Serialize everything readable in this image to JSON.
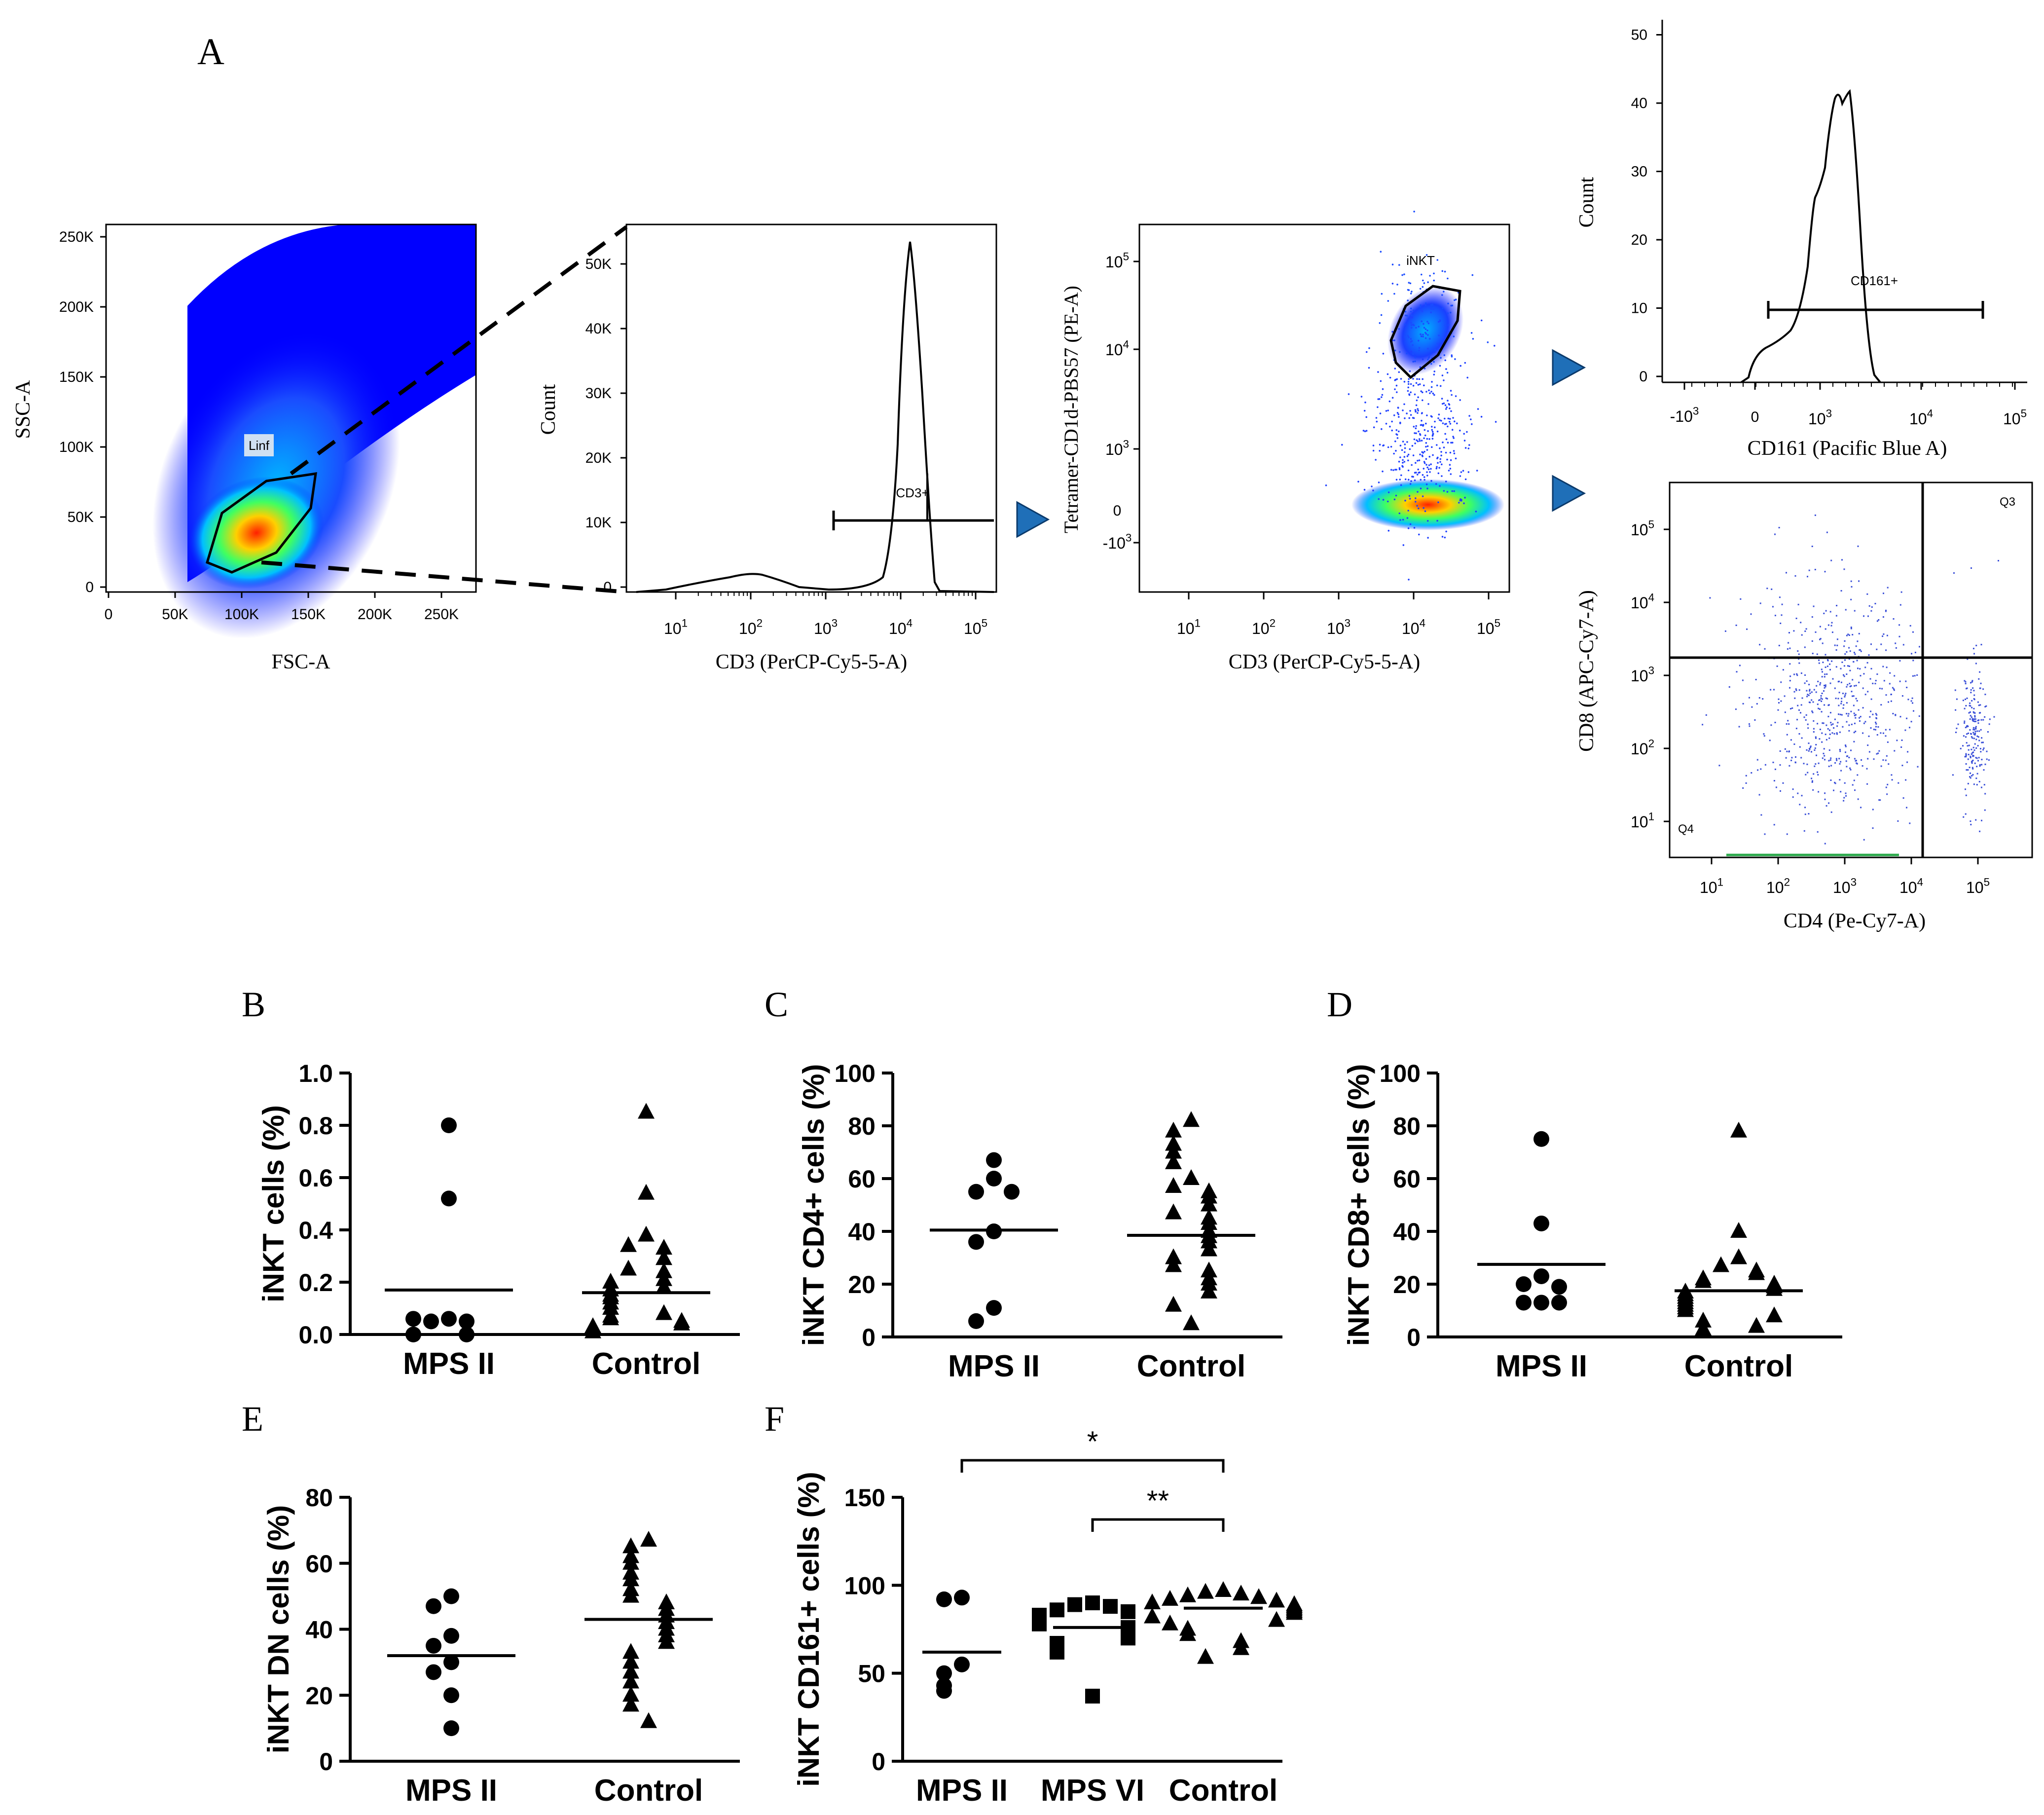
{
  "figure": {
    "panel_labels": {
      "A": "A",
      "B": "B",
      "C": "C",
      "D": "D",
      "E": "E",
      "F": "F"
    },
    "colors": {
      "ink": "#000000",
      "arrow": "#1f6fb8",
      "dens_low": "#0000ff",
      "dens_mid": "#00c8ff",
      "dens_hi": "#ffe600",
      "dens_peak": "#ff2000",
      "cd4cd8_dot": "#3a4fd8"
    }
  },
  "flow": {
    "p1": {
      "xlabel": "FSC-A",
      "ylabel": "SSC-A",
      "xticks": [
        "0",
        "50K",
        "100K",
        "150K",
        "200K",
        "250K"
      ],
      "yticks": [
        "0",
        "50K",
        "100K",
        "150K",
        "200K",
        "250K"
      ],
      "gate": "Linf"
    },
    "p2": {
      "xlabel": "CD3 (PerCP-Cy5-5-A)",
      "ylabel": "Count",
      "yticks": [
        "0",
        "10K",
        "20K",
        "30K",
        "40K",
        "50K"
      ],
      "xexp": [
        "1",
        "2",
        "3",
        "4",
        "5"
      ],
      "gate": "CD3+"
    },
    "p3": {
      "xlabel": "CD3 (PerCP-Cy5-5-A)",
      "ylabel": "Tetramer-CD1d-PBS57 (PE-A)",
      "xexp": [
        "1",
        "2",
        "3",
        "4",
        "5"
      ],
      "gate": "iNKT",
      "yzero": "0"
    },
    "p4": {
      "xlabel": "CD161 (Pacific Blue A)",
      "ylabel": "Count",
      "yticks": [
        "0",
        "10",
        "20",
        "30",
        "40",
        "50"
      ],
      "xticks_plain": [
        "0"
      ],
      "xexp": [
        "3",
        "3",
        "4",
        "5"
      ],
      "xneg": "-10",
      "gate": "CD161+"
    },
    "p5": {
      "xlabel": "CD4 (Pe-Cy7-A)",
      "ylabel": "CD8 (APC-Cy7-A)",
      "xexp": [
        "1",
        "2",
        "3",
        "4",
        "5"
      ],
      "yexp": [
        "1",
        "2",
        "3",
        "4",
        "5"
      ],
      "q3": "Q3",
      "q4": "Q4"
    }
  },
  "chart_data": [
    {
      "id": "B",
      "type": "scatter",
      "ylabel": "iNKT cells (%)",
      "ylim": [
        0,
        1.0
      ],
      "yticks": [
        "0.0",
        "0.2",
        "0.4",
        "0.6",
        "0.8",
        "1.0"
      ],
      "ytick_values": [
        0,
        0.2,
        0.4,
        0.6,
        0.8,
        1.0
      ],
      "categories": [
        "MPS II",
        "Control"
      ],
      "series": [
        {
          "name": "MPS II",
          "marker": "circle",
          "mean": 0.17,
          "values": [
            0.8,
            0.52,
            0.06,
            0.05,
            0.05,
            0.0,
            0.0,
            0.06
          ]
        },
        {
          "name": "Control",
          "marker": "triangle",
          "mean": 0.16,
          "values": [
            0.85,
            0.54,
            0.38,
            0.34,
            0.33,
            0.29,
            0.25,
            0.24,
            0.21,
            0.2,
            0.18,
            0.17,
            0.15,
            0.14,
            0.12,
            0.1,
            0.08,
            0.07,
            0.06,
            0.05,
            0.04,
            0.03,
            0.02,
            0.01
          ]
        }
      ]
    },
    {
      "id": "C",
      "type": "scatter",
      "ylabel": "iNKT CD4+ cells (%)",
      "ylim": [
        0,
        100
      ],
      "yticks": [
        "0",
        "20",
        "40",
        "60",
        "80",
        "100"
      ],
      "ytick_values": [
        0,
        20,
        40,
        60,
        80,
        100
      ],
      "categories": [
        "MPS II",
        "Control"
      ],
      "series": [
        {
          "name": "MPS II",
          "marker": "circle",
          "mean": 40.5,
          "values": [
            67,
            60,
            55,
            55,
            40,
            36,
            11,
            6
          ]
        },
        {
          "name": "Control",
          "marker": "triangle",
          "mean": 38.5,
          "values": [
            82,
            78,
            73,
            70,
            66,
            60,
            57,
            55,
            53,
            50,
            47,
            45,
            43,
            40,
            38,
            36,
            33,
            30,
            27,
            25,
            22,
            20,
            17,
            12,
            5
          ]
        }
      ]
    },
    {
      "id": "D",
      "type": "scatter",
      "ylabel": "iNKT CD8+ cells (%)",
      "ylim": [
        0,
        100
      ],
      "yticks": [
        "0",
        "20",
        "40",
        "60",
        "80",
        "100"
      ],
      "ytick_values": [
        0,
        20,
        40,
        60,
        80,
        100
      ],
      "categories": [
        "MPS II",
        "Control"
      ],
      "series": [
        {
          "name": "MPS II",
          "marker": "circle",
          "mean": 27.5,
          "values": [
            75,
            43,
            23,
            20,
            19,
            13,
            13,
            13
          ]
        },
        {
          "name": "Control",
          "marker": "triangle",
          "mean": 17.5,
          "values": [
            78,
            40,
            30,
            27,
            25,
            24,
            22,
            21,
            20,
            19,
            18,
            17,
            16,
            15,
            14,
            13,
            12,
            11,
            10,
            8,
            6,
            4,
            3,
            2
          ]
        }
      ]
    },
    {
      "id": "E",
      "type": "scatter",
      "ylabel": "iNKT DN cells (%)",
      "ylim": [
        0,
        80
      ],
      "yticks": [
        "0",
        "20",
        "40",
        "60",
        "80"
      ],
      "ytick_values": [
        0,
        20,
        40,
        60,
        80
      ],
      "categories": [
        "MPS II",
        "Control"
      ],
      "series": [
        {
          "name": "MPS II",
          "marker": "circle",
          "mean": 32,
          "values": [
            50,
            47,
            38,
            35,
            30,
            27,
            20,
            10
          ]
        },
        {
          "name": "Control",
          "marker": "triangle",
          "mean": 43,
          "values": [
            67,
            65,
            62,
            60,
            57,
            55,
            52,
            50,
            48,
            46,
            44,
            42,
            40,
            38,
            36,
            33,
            30,
            27,
            24,
            20,
            17,
            12
          ]
        }
      ]
    },
    {
      "id": "F",
      "type": "scatter",
      "ylabel": "iNKT CD161+ cells (%)",
      "ylim": [
        0,
        150
      ],
      "yticks": [
        "0",
        "50",
        "100",
        "150"
      ],
      "ytick_values": [
        0,
        50,
        100,
        150
      ],
      "categories": [
        "MPS II",
        "MPS VI",
        "Control"
      ],
      "series": [
        {
          "name": "MPS II",
          "marker": "circle",
          "mean": 62,
          "values": [
            93,
            92,
            55,
            50,
            43,
            40
          ]
        },
        {
          "name": "MPS VI",
          "marker": "square",
          "mean": 76,
          "values": [
            90,
            89,
            88,
            86,
            85,
            83,
            81,
            80,
            78,
            76,
            74,
            72,
            70,
            67,
            64,
            62,
            37
          ]
        },
        {
          "name": "Control",
          "marker": "triangle",
          "mean": 87,
          "values": [
            97,
            96,
            95,
            94,
            93,
            92,
            91,
            90,
            89,
            88,
            87,
            86,
            85,
            84,
            82,
            80,
            78,
            75,
            72,
            68,
            64,
            59
          ]
        }
      ],
      "significance": [
        {
          "from": "MPS II",
          "to": "Control",
          "label": "*"
        },
        {
          "from": "MPS VI",
          "to": "Control",
          "label": "**"
        }
      ]
    }
  ]
}
